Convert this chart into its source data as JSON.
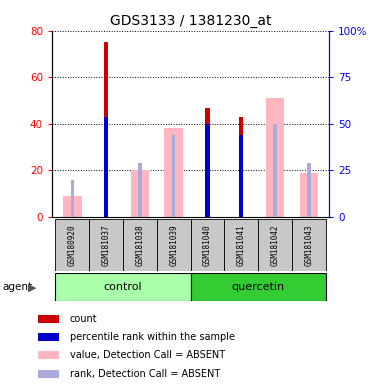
{
  "title": "GDS3133 / 1381230_at",
  "samples": [
    "GSM180920",
    "GSM181037",
    "GSM181038",
    "GSM181039",
    "GSM181040",
    "GSM181041",
    "GSM181042",
    "GSM181043"
  ],
  "count_values": [
    0,
    75,
    0,
    0,
    47,
    43,
    0,
    0
  ],
  "percentile_rank_values": [
    0,
    43,
    0,
    0,
    40,
    35,
    0,
    0
  ],
  "absent_value_values": [
    9,
    0,
    20,
    38,
    0,
    0,
    51,
    19
  ],
  "absent_rank_values": [
    16,
    0,
    23,
    35,
    0,
    0,
    40,
    23
  ],
  "ylim_left": [
    0,
    80
  ],
  "ylim_right": [
    0,
    100
  ],
  "yticks_left": [
    0,
    20,
    40,
    60,
    80
  ],
  "yticks_right": [
    0,
    25,
    50,
    75,
    100
  ],
  "ytick_labels_left": [
    "0",
    "20",
    "40",
    "60",
    "80"
  ],
  "ytick_labels_right": [
    "0",
    "25",
    "50",
    "75",
    "100%"
  ],
  "color_count": "#CC0000",
  "color_percentile": "#0000CC",
  "color_absent_value": "#FFB6C1",
  "color_absent_rank": "#AAAADD",
  "group_control_color": "#AAFFAA",
  "group_quercetin_color": "#33CC33",
  "sample_bg_color": "#C8C8C8",
  "legend_items": [
    "count",
    "percentile rank within the sample",
    "value, Detection Call = ABSENT",
    "rank, Detection Call = ABSENT"
  ],
  "legend_colors": [
    "#CC0000",
    "#0000CC",
    "#FFB6C1",
    "#AAAADD"
  ]
}
